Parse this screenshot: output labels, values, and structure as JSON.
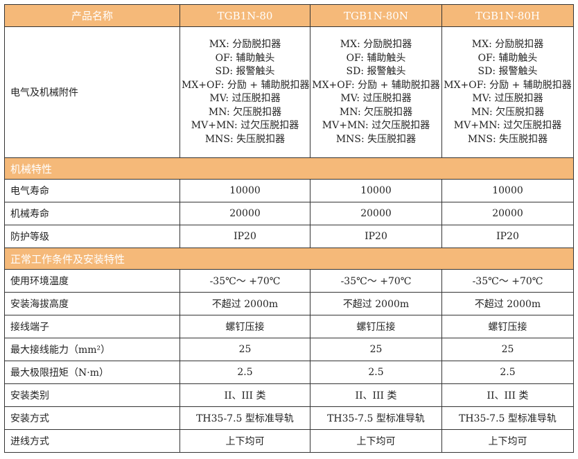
{
  "header": {
    "label": "产品名称",
    "models": [
      "TGB1N-80",
      "TGB1N-80N",
      "TGB1N-80H"
    ]
  },
  "accessories": {
    "label": "电气及机械附件",
    "items": [
      "MX: 分励脱扣器",
      "OF: 辅助触头",
      "SD: 报警触头",
      "MX+OF: 分励 + 辅助脱扣器",
      "MV: 过压脱扣器",
      "MN: 欠压脱扣器",
      "MV+MN: 过欠压脱扣器",
      "MNS: 失压脱扣器"
    ]
  },
  "section1": {
    "title": "机械特性",
    "rows": [
      {
        "label": "电气寿命",
        "values": [
          "10000",
          "10000",
          "10000"
        ]
      },
      {
        "label": "机械寿命",
        "values": [
          "20000",
          "20000",
          "20000"
        ]
      },
      {
        "label": "防护等级",
        "values": [
          "IP20",
          "IP20",
          "IP20"
        ]
      }
    ]
  },
  "section2": {
    "title": "正常工作条件及安装特性",
    "rows": [
      {
        "label": "使用环境温度",
        "values": [
          "-35℃～ +70℃",
          "-35℃～ +70℃",
          "-35℃～ +70℃"
        ]
      },
      {
        "label": "安装海拔高度",
        "values": [
          "不超过 2000m",
          "不超过 2000m",
          "不超过 2000m"
        ]
      },
      {
        "label": "接线端子",
        "values": [
          "螺钉压接",
          "螺钉压接",
          "螺钉压接"
        ]
      },
      {
        "label": "最大接线能力（mm²）",
        "values": [
          "25",
          "25",
          "25"
        ]
      },
      {
        "label": "最大极限扭矩（N·m）",
        "values": [
          "2.5",
          "2.5",
          "2.5"
        ]
      },
      {
        "label": "安装类别",
        "values": [
          "II、III 类",
          "II、III 类",
          "II、III 类"
        ]
      },
      {
        "label": "安装方式",
        "values": [
          "TH35-7.5 型标准导轨",
          "TH35-7.5 型标准导轨",
          "TH35-7.5 型标准导轨"
        ]
      },
      {
        "label": "进线方式",
        "values": [
          "上下均可",
          "上下均可",
          "上下均可"
        ]
      }
    ]
  },
  "colors": {
    "header_bg": "#f5b979",
    "header_text": "#ffffff"
  }
}
